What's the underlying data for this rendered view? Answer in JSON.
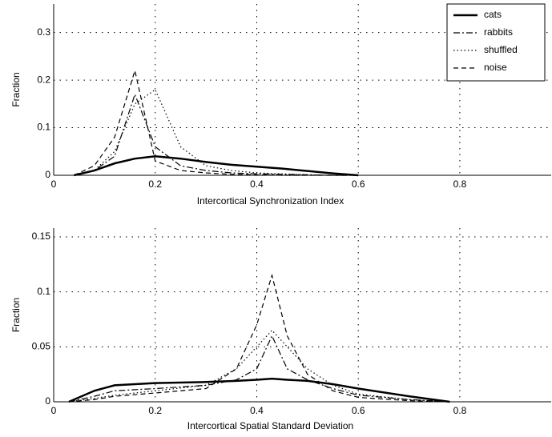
{
  "chart_data": [
    {
      "type": "line",
      "xlabel": "Intercortical Synchronization Index",
      "ylabel": "Fraction",
      "x": [
        0.04,
        0.08,
        0.12,
        0.16,
        0.2,
        0.25,
        0.3,
        0.35,
        0.4,
        0.45,
        0.5,
        0.55,
        0.6
      ],
      "series": [
        {
          "name": "cats",
          "color": "#000000",
          "dash": "solid",
          "values": [
            0,
            0.01,
            0.025,
            0.035,
            0.04,
            0.035,
            0.028,
            0.022,
            0.018,
            0.014,
            0.009,
            0.004,
            0
          ]
        },
        {
          "name": "rabbits",
          "color": "#000000",
          "dash": "dashdot",
          "values": [
            0,
            0.01,
            0.04,
            0.17,
            0.06,
            0.02,
            0.01,
            0.005,
            0.003,
            0.002,
            0.001,
            0,
            0
          ]
        },
        {
          "name": "shuffled",
          "color": "#000000",
          "dash": "dotted",
          "values": [
            0,
            0.01,
            0.05,
            0.15,
            0.18,
            0.06,
            0.02,
            0.01,
            0.005,
            0.003,
            0.001,
            0,
            0
          ]
        },
        {
          "name": "noise",
          "color": "#000000",
          "dash": "dashed",
          "values": [
            0,
            0.02,
            0.08,
            0.22,
            0.03,
            0.01,
            0.005,
            0.002,
            0.001,
            0,
            0,
            0,
            0
          ]
        }
      ],
      "xlim": [
        0,
        0.98
      ],
      "ylim": [
        0,
        0.36
      ],
      "xticks": [
        0,
        0.2,
        0.4,
        0.6,
        0.8
      ],
      "yticks": [
        0,
        0.1,
        0.2,
        0.3
      ],
      "grid": true,
      "legend": "upper right"
    },
    {
      "type": "line",
      "xlabel": "Intercortical Spatial Standard Deviation",
      "ylabel": "Fraction",
      "x": [
        0.03,
        0.08,
        0.12,
        0.2,
        0.3,
        0.36,
        0.4,
        0.43,
        0.46,
        0.5,
        0.55,
        0.6,
        0.7,
        0.78
      ],
      "series": [
        {
          "color": "#000000",
          "dash": "solid",
          "values": [
            0,
            0.01,
            0.015,
            0.017,
            0.018,
            0.019,
            0.02,
            0.021,
            0.02,
            0.019,
            0.016,
            0.012,
            0.005,
            0
          ]
        },
        {
          "color": "#000000",
          "dash": "dashdot",
          "values": [
            0,
            0.005,
            0.01,
            0.012,
            0.015,
            0.02,
            0.03,
            0.06,
            0.03,
            0.02,
            0.012,
            0.006,
            0.002,
            0
          ]
        },
        {
          "color": "#000000",
          "dash": "dotted",
          "values": [
            0,
            0.003,
            0.006,
            0.01,
            0.015,
            0.03,
            0.05,
            0.065,
            0.05,
            0.03,
            0.015,
            0.007,
            0.002,
            0
          ]
        },
        {
          "color": "#000000",
          "dash": "dashed",
          "values": [
            0,
            0.002,
            0.005,
            0.008,
            0.012,
            0.03,
            0.07,
            0.115,
            0.06,
            0.025,
            0.01,
            0.004,
            0.001,
            0
          ]
        }
      ],
      "xlim": [
        0,
        0.98
      ],
      "ylim": [
        0,
        0.158
      ],
      "xticks": [
        0,
        0.2,
        0.4,
        0.6,
        0.8
      ],
      "yticks": [
        0,
        0.05,
        0.1,
        0.15
      ],
      "grid": true
    }
  ]
}
